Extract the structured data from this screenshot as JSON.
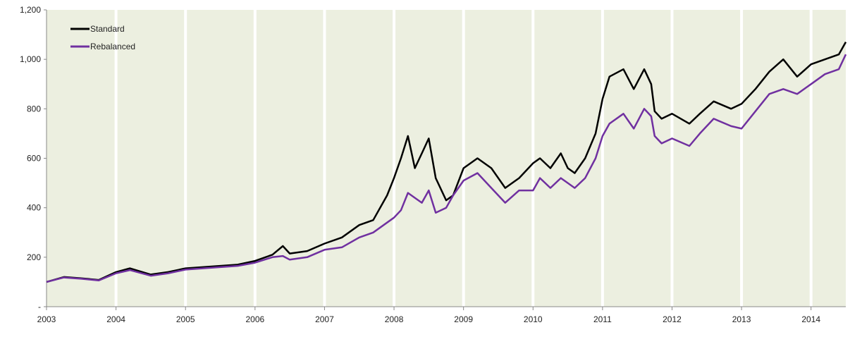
{
  "chart_data": {
    "type": "line",
    "title": "",
    "xlabel": "",
    "ylabel": "",
    "xlim": [
      2003,
      2014.5
    ],
    "ylim": [
      0,
      1200
    ],
    "x_ticks": [
      "2003",
      "2004",
      "2005",
      "2006",
      "2007",
      "2008",
      "2009",
      "2010",
      "2011",
      "2012",
      "2013",
      "2014"
    ],
    "y_ticks": [
      {
        "value": 0,
        "label": "-"
      },
      {
        "value": 200,
        "label": "200"
      },
      {
        "value": 400,
        "label": "400"
      },
      {
        "value": 600,
        "label": "600"
      },
      {
        "value": 800,
        "label": "800"
      },
      {
        "value": 1000,
        "label": "1,000"
      },
      {
        "value": 1200,
        "label": "1,200"
      }
    ],
    "background_color": "#ecefe0",
    "year_separator_color": "#ffffff",
    "legend_position": "top-left",
    "series": [
      {
        "name": "Standard",
        "color": "#000000",
        "x": [
          2003.0,
          2003.25,
          2003.5,
          2003.75,
          2004.0,
          2004.2,
          2004.5,
          2004.75,
          2005.0,
          2005.25,
          2005.5,
          2005.75,
          2006.0,
          2006.25,
          2006.4,
          2006.5,
          2006.75,
          2007.0,
          2007.25,
          2007.5,
          2007.7,
          2007.9,
          2008.0,
          2008.1,
          2008.2,
          2008.3,
          2008.4,
          2008.5,
          2008.6,
          2008.75,
          2008.85,
          2009.0,
          2009.2,
          2009.4,
          2009.6,
          2009.8,
          2010.0,
          2010.1,
          2010.25,
          2010.4,
          2010.5,
          2010.6,
          2010.75,
          2010.9,
          2011.0,
          2011.1,
          2011.3,
          2011.45,
          2011.6,
          2011.7,
          2011.75,
          2011.85,
          2012.0,
          2012.25,
          2012.4,
          2012.6,
          2012.85,
          2013.0,
          2013.2,
          2013.4,
          2013.6,
          2013.8,
          2014.0,
          2014.2,
          2014.4,
          2014.5
        ],
        "y": [
          100,
          120,
          115,
          108,
          140,
          155,
          130,
          140,
          155,
          160,
          165,
          170,
          185,
          210,
          245,
          215,
          225,
          255,
          280,
          330,
          350,
          450,
          520,
          600,
          690,
          560,
          620,
          680,
          520,
          430,
          450,
          560,
          600,
          560,
          480,
          520,
          580,
          600,
          560,
          620,
          560,
          540,
          600,
          700,
          840,
          930,
          960,
          880,
          960,
          900,
          790,
          760,
          780,
          740,
          780,
          830,
          800,
          820,
          880,
          950,
          1000,
          930,
          980,
          1000,
          1020,
          1070
        ]
      },
      {
        "name": "Rebalanced",
        "color": "#7030a0",
        "x": [
          2003.0,
          2003.25,
          2003.5,
          2003.75,
          2004.0,
          2004.2,
          2004.5,
          2004.75,
          2005.0,
          2005.25,
          2005.5,
          2005.75,
          2006.0,
          2006.25,
          2006.4,
          2006.5,
          2006.75,
          2007.0,
          2007.25,
          2007.5,
          2007.7,
          2007.9,
          2008.0,
          2008.1,
          2008.2,
          2008.3,
          2008.4,
          2008.5,
          2008.6,
          2008.75,
          2008.85,
          2009.0,
          2009.2,
          2009.4,
          2009.6,
          2009.8,
          2010.0,
          2010.1,
          2010.25,
          2010.4,
          2010.5,
          2010.6,
          2010.75,
          2010.9,
          2011.0,
          2011.1,
          2011.3,
          2011.45,
          2011.6,
          2011.7,
          2011.75,
          2011.85,
          2012.0,
          2012.25,
          2012.4,
          2012.6,
          2012.85,
          2013.0,
          2013.2,
          2013.4,
          2013.6,
          2013.8,
          2014.0,
          2014.2,
          2014.4,
          2014.5
        ],
        "y": [
          100,
          118,
          113,
          106,
          135,
          148,
          125,
          135,
          150,
          155,
          160,
          165,
          178,
          200,
          205,
          190,
          200,
          230,
          240,
          280,
          300,
          340,
          360,
          390,
          460,
          440,
          420,
          470,
          380,
          400,
          450,
          510,
          540,
          480,
          420,
          470,
          470,
          520,
          480,
          520,
          500,
          480,
          520,
          600,
          690,
          740,
          780,
          720,
          800,
          770,
          690,
          660,
          680,
          650,
          700,
          760,
          730,
          720,
          790,
          860,
          880,
          860,
          900,
          940,
          960,
          1020
        ]
      }
    ]
  }
}
